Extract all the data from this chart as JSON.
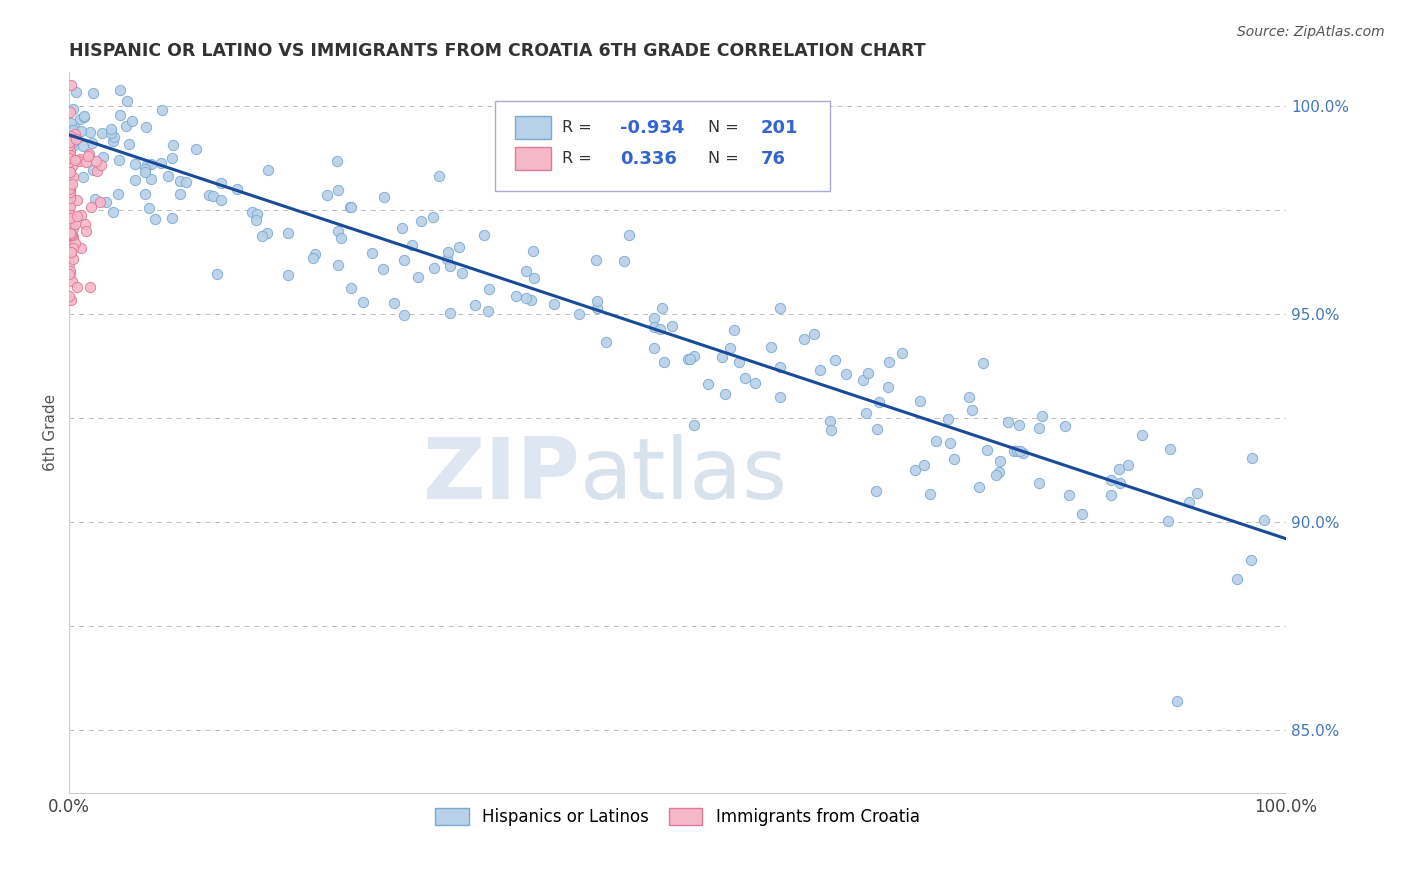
{
  "title": "HISPANIC OR LATINO VS IMMIGRANTS FROM CROATIA 6TH GRADE CORRELATION CHART",
  "source_text": "Source: ZipAtlas.com",
  "ylabel_left": "6th Grade",
  "blue_R": -0.934,
  "blue_N": 201,
  "pink_R": 0.336,
  "pink_N": 76,
  "blue_color": "#b8d0e8",
  "blue_edge_color": "#7aaad0",
  "pink_color": "#f4b8c8",
  "pink_edge_color": "#e07898",
  "trend_blue_color": "#1a4a9a",
  "legend_label_blue": "Hispanics or Latinos",
  "legend_label_pink": "Immigrants from Croatia",
  "watermark_zip": "ZIP",
  "watermark_atlas": "atlas",
  "background_color": "#ffffff",
  "grid_color": "#bbbbbb",
  "xlim": [
    0.0,
    1.0
  ],
  "ylim": [
    0.835,
    1.008
  ],
  "trend_x_start": 0.0,
  "trend_x_end": 1.0,
  "trend_y_start": 0.993,
  "trend_y_end": 0.896
}
